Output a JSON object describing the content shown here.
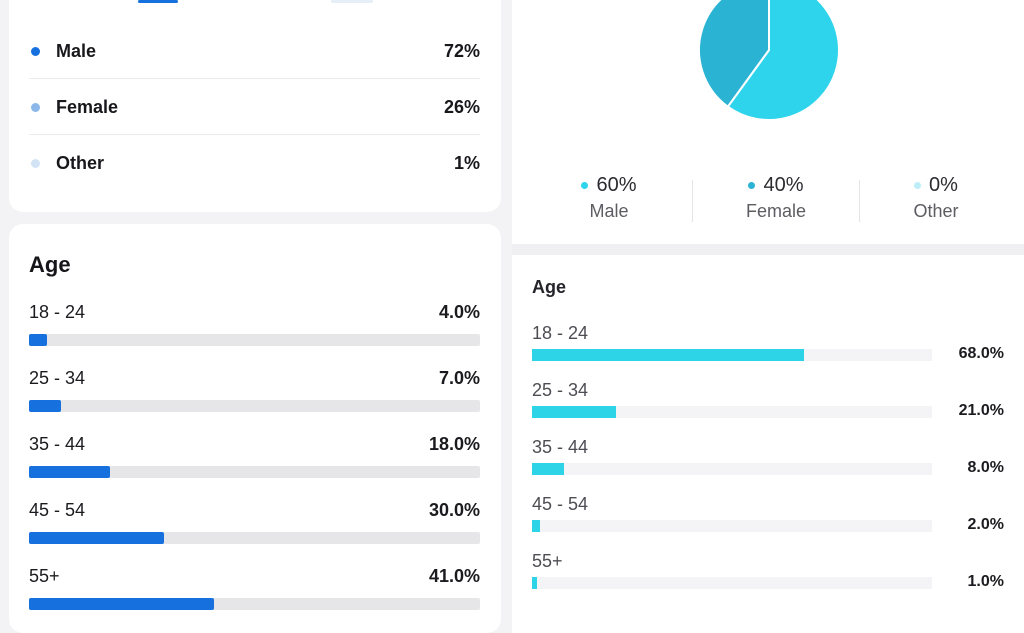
{
  "left": {
    "gender": {
      "items": [
        {
          "label": "Male",
          "value": "72%",
          "color": "#1670dd"
        },
        {
          "label": "Female",
          "value": "26%",
          "color": "#8bb7ea"
        },
        {
          "label": "Other",
          "value": "1%",
          "color": "#d3e3f6"
        }
      ]
    },
    "age": {
      "title": "Age",
      "rows": [
        {
          "range": "18 - 24",
          "value": "4.0%",
          "fraction": 0.04
        },
        {
          "range": "25 - 34",
          "value": "7.0%",
          "fraction": 0.07
        },
        {
          "range": "35 - 44",
          "value": "18.0%",
          "fraction": 0.18
        },
        {
          "range": "45 - 54",
          "value": "30.0%",
          "fraction": 0.3
        },
        {
          "range": "55+",
          "value": "41.0%",
          "fraction": 0.41
        }
      ]
    }
  },
  "right": {
    "gender": {
      "pie": [
        {
          "name": "Male",
          "value": 60,
          "color": "#2dd4ec"
        },
        {
          "name": "Female",
          "value": 40,
          "color": "#2bb3d3"
        },
        {
          "name": "Other",
          "value": 0,
          "color": "#bdeef7"
        }
      ],
      "legend": [
        {
          "percent": "60%",
          "label": "Male",
          "color": "#2dd4ec"
        },
        {
          "percent": "40%",
          "label": "Female",
          "color": "#2bb3d3"
        },
        {
          "percent": "0%",
          "label": "Other",
          "color": "#bdeef7"
        }
      ]
    },
    "age": {
      "title": "Age",
      "rows": [
        {
          "range": "18 - 24",
          "value": "68.0%",
          "fraction": 0.68
        },
        {
          "range": "25 - 34",
          "value": "21.0%",
          "fraction": 0.21
        },
        {
          "range": "35 - 44",
          "value": "8.0%",
          "fraction": 0.08
        },
        {
          "range": "45 - 54",
          "value": "2.0%",
          "fraction": 0.02
        },
        {
          "range": "55+",
          "value": "1.0%",
          "fraction": 0.01
        }
      ]
    }
  }
}
